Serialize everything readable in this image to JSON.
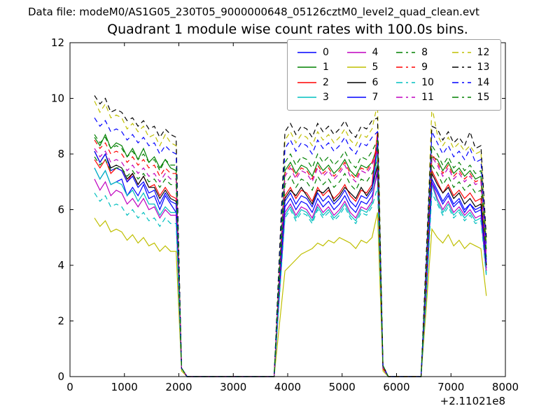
{
  "header": {
    "text": "Data file: modeM0/AS1G05_230T05_9000000648_05126cztM0_level2_quad_clean.evt"
  },
  "chart_data": {
    "type": "line",
    "title": "Quadrant 1 module wise count rates with 100.0s bins.",
    "xlabel": "",
    "ylabel": "",
    "xlim": [
      0,
      8000
    ],
    "ylim": [
      0,
      12
    ],
    "xticks": [
      0,
      1000,
      2000,
      3000,
      4000,
      5000,
      6000,
      7000,
      8000
    ],
    "yticks": [
      0,
      2,
      4,
      6,
      8,
      10,
      12
    ],
    "x_offset_label": "+2.11021e8",
    "bin_size_seconds": 100.0,
    "grid": false,
    "legend": {
      "position": "upper right",
      "columns": 4,
      "entries": [
        "0",
        "1",
        "2",
        "3",
        "4",
        "5",
        "6",
        "7",
        "8",
        "9",
        "10",
        "11",
        "12",
        "13",
        "14",
        "15"
      ]
    },
    "x_start": 450,
    "x_step": 100,
    "series": [
      {
        "name": "0",
        "color": "#0000FF",
        "style": "solid",
        "values": [
          7.5,
          7.1,
          7.4,
          6.9,
          7.0,
          7.1,
          6.5,
          6.8,
          6.5,
          6.9,
          6.4,
          6.5,
          6.0,
          6.5,
          6.2,
          5.9,
          0.3,
          0,
          0,
          0,
          0,
          0,
          0,
          0,
          0,
          0,
          0,
          0,
          0,
          0,
          0,
          0,
          0,
          0,
          3.1,
          6.1,
          6.4,
          6.0,
          6.3,
          6.2,
          5.9,
          6.4,
          6.1,
          6.3,
          6.0,
          6.2,
          6.5,
          6.1,
          5.9,
          6.3,
          6.2,
          6.5,
          7.3,
          0.3,
          0,
          0,
          0,
          0,
          0,
          0,
          0,
          3.2,
          7.0,
          6.6,
          6.2,
          6.5,
          6.1,
          6.3,
          5.9,
          6.2,
          6.0,
          6.1,
          3.9
        ]
      },
      {
        "name": "1",
        "color": "#008000",
        "style": "solid",
        "values": [
          8.6,
          8.3,
          8.7,
          8.2,
          8.4,
          8.3,
          7.9,
          8.2,
          7.8,
          8.2,
          7.7,
          7.9,
          7.5,
          7.8,
          7.5,
          7.4,
          0.3,
          0,
          0,
          0,
          0,
          0,
          0,
          0,
          0,
          0,
          0,
          0,
          0,
          0,
          0,
          0,
          0,
          0,
          3.8,
          7.4,
          7.7,
          7.3,
          7.6,
          7.5,
          7.2,
          7.7,
          7.4,
          7.6,
          7.3,
          7.5,
          7.8,
          7.4,
          7.2,
          7.6,
          7.5,
          7.7,
          8.3,
          0.3,
          0,
          0,
          0,
          0,
          0,
          0,
          0,
          3.9,
          7.9,
          7.8,
          7.4,
          7.7,
          7.3,
          7.5,
          7.2,
          7.4,
          7.1,
          7.2,
          4.2
        ]
      },
      {
        "name": "2",
        "color": "#FF0000",
        "style": "solid",
        "values": [
          7.8,
          7.5,
          7.8,
          7.3,
          7.5,
          7.4,
          7.0,
          7.3,
          6.9,
          7.2,
          6.8,
          6.9,
          6.5,
          6.8,
          6.5,
          6.4,
          0.3,
          0,
          0,
          0,
          0,
          0,
          0,
          0,
          0,
          0,
          0,
          0,
          0,
          0,
          0,
          0,
          0,
          0,
          3.3,
          6.5,
          6.8,
          6.4,
          6.7,
          6.6,
          6.3,
          6.8,
          6.5,
          6.7,
          6.4,
          6.6,
          6.9,
          6.5,
          6.3,
          6.7,
          6.6,
          6.9,
          8.8,
          0.3,
          0,
          0,
          0,
          0,
          0,
          0,
          0,
          3.4,
          7.4,
          7.0,
          6.6,
          6.9,
          6.5,
          6.7,
          6.4,
          6.6,
          6.3,
          6.4,
          4.0
        ]
      },
      {
        "name": "3",
        "color": "#00BFBF",
        "style": "solid",
        "values": [
          7.5,
          7.1,
          7.4,
          6.9,
          7.0,
          6.9,
          6.5,
          6.7,
          6.3,
          6.6,
          6.2,
          6.2,
          5.8,
          6.1,
          5.9,
          5.9,
          0.3,
          0,
          0,
          0,
          0,
          0,
          0,
          0,
          0,
          0,
          0,
          0,
          0,
          0,
          0,
          0,
          0,
          0,
          3.0,
          5.8,
          6.1,
          5.7,
          6.0,
          5.9,
          5.6,
          6.1,
          5.8,
          6.0,
          5.7,
          5.9,
          6.2,
          5.8,
          5.6,
          6.0,
          5.9,
          6.2,
          8.2,
          0.3,
          0,
          0,
          0,
          0,
          0,
          0,
          0,
          3.1,
          6.9,
          6.3,
          5.9,
          6.2,
          5.8,
          6.0,
          5.7,
          5.9,
          5.6,
          5.7,
          3.7
        ]
      },
      {
        "name": "4",
        "color": "#BF00BF",
        "style": "solid",
        "values": [
          7.1,
          6.7,
          7.0,
          6.5,
          6.7,
          6.6,
          6.2,
          6.4,
          6.1,
          6.4,
          6.0,
          6.1,
          5.7,
          6.0,
          5.8,
          5.8,
          0.3,
          0,
          0,
          0,
          0,
          0,
          0,
          0,
          0,
          0,
          0,
          0,
          0,
          0,
          0,
          0,
          0,
          0,
          3.0,
          5.9,
          6.2,
          5.8,
          6.1,
          6.0,
          5.7,
          6.2,
          5.9,
          6.1,
          5.8,
          6.0,
          6.3,
          5.9,
          5.7,
          6.1,
          6.0,
          6.3,
          7.5,
          0.3,
          0,
          0,
          0,
          0,
          0,
          0,
          0,
          3.1,
          7.0,
          6.4,
          6.0,
          6.3,
          5.9,
          6.1,
          5.8,
          6.0,
          5.7,
          5.8,
          3.8
        ]
      },
      {
        "name": "5",
        "color": "#BFBF00",
        "style": "solid",
        "values": [
          5.7,
          5.4,
          5.6,
          5.2,
          5.3,
          5.2,
          4.9,
          5.1,
          4.8,
          5.0,
          4.7,
          4.8,
          4.5,
          4.7,
          4.5,
          4.5,
          0.2,
          0,
          0,
          0,
          0,
          0,
          0,
          0,
          0,
          0,
          0,
          0,
          0,
          0,
          0,
          0,
          0,
          0,
          1.9,
          3.8,
          4.0,
          4.2,
          4.4,
          4.5,
          4.6,
          4.8,
          4.7,
          4.9,
          4.8,
          5.0,
          4.9,
          4.8,
          4.6,
          4.9,
          4.8,
          5.0,
          5.9,
          0.2,
          0,
          0,
          0,
          0,
          0,
          0,
          0,
          2.6,
          5.3,
          5.0,
          4.8,
          5.1,
          4.7,
          4.9,
          4.6,
          4.8,
          4.7,
          4.6,
          2.9
        ]
      },
      {
        "name": "6",
        "color": "#000000",
        "style": "solid",
        "values": [
          8.1,
          7.7,
          8.0,
          7.5,
          7.6,
          7.5,
          7.1,
          7.3,
          6.9,
          7.2,
          6.8,
          6.8,
          6.4,
          6.7,
          6.4,
          6.3,
          0.3,
          0,
          0,
          0,
          0,
          0,
          0,
          0,
          0,
          0,
          0,
          0,
          0,
          0,
          0,
          0,
          0,
          0,
          3.3,
          6.4,
          6.7,
          6.5,
          6.8,
          6.5,
          6.2,
          6.7,
          6.6,
          6.8,
          6.3,
          6.5,
          6.8,
          6.6,
          6.4,
          6.8,
          6.5,
          6.8,
          7.6,
          0.3,
          0,
          0,
          0,
          0,
          0,
          0,
          0,
          3.4,
          7.3,
          6.9,
          6.6,
          6.8,
          6.4,
          6.6,
          6.2,
          6.4,
          6.1,
          6.2,
          4.0
        ]
      },
      {
        "name": "7",
        "color": "#0000FF",
        "style": "solid",
        "values": [
          8.1,
          7.7,
          8.0,
          7.4,
          7.5,
          7.4,
          7.0,
          7.2,
          6.8,
          7.0,
          6.6,
          6.7,
          6.2,
          6.6,
          6.3,
          6.2,
          0.3,
          0,
          0,
          0,
          0,
          0,
          0,
          0,
          0,
          0,
          0,
          0,
          0,
          0,
          0,
          0,
          0,
          0,
          3.2,
          6.3,
          6.6,
          6.2,
          6.5,
          6.4,
          6.1,
          6.6,
          6.3,
          6.5,
          6.2,
          6.4,
          6.7,
          6.3,
          6.1,
          6.5,
          6.4,
          6.7,
          8.4,
          0.3,
          0,
          0,
          0,
          0,
          0,
          0,
          0,
          3.3,
          7.1,
          6.7,
          6.3,
          6.6,
          6.2,
          6.4,
          6.0,
          6.2,
          5.9,
          6.0,
          4.1
        ]
      },
      {
        "name": "8",
        "color": "#008000",
        "style": "dashed",
        "values": [
          7.9,
          7.6,
          7.8,
          7.4,
          7.5,
          7.5,
          7.2,
          7.4,
          7.1,
          7.3,
          7.0,
          7.1,
          6.8,
          7.1,
          6.9,
          6.9,
          0.3,
          0,
          0,
          0,
          0,
          0,
          0,
          0,
          0,
          0,
          0,
          0,
          0,
          0,
          0,
          0,
          0,
          0,
          3.5,
          6.9,
          7.2,
          6.8,
          7.1,
          7.0,
          6.7,
          7.2,
          6.9,
          7.1,
          6.8,
          7.0,
          7.3,
          6.9,
          6.7,
          7.1,
          7.0,
          7.3,
          7.8,
          0.3,
          0,
          0,
          0,
          0,
          0,
          0,
          0,
          3.6,
          7.6,
          7.3,
          6.9,
          7.2,
          6.8,
          7.0,
          6.7,
          6.9,
          6.6,
          6.7,
          4.3
        ]
      },
      {
        "name": "9",
        "color": "#FF0000",
        "style": "dashed",
        "values": [
          8.5,
          8.2,
          8.4,
          8.0,
          8.1,
          8.0,
          7.7,
          7.9,
          7.6,
          7.8,
          7.5,
          7.6,
          7.2,
          7.5,
          7.3,
          7.3,
          0.3,
          0,
          0,
          0,
          0,
          0,
          0,
          0,
          0,
          0,
          0,
          0,
          0,
          0,
          0,
          0,
          0,
          0,
          3.7,
          7.3,
          7.6,
          7.2,
          7.5,
          7.4,
          7.1,
          7.6,
          7.3,
          7.5,
          7.2,
          7.4,
          7.7,
          7.3,
          7.1,
          7.5,
          7.4,
          7.7,
          8.2,
          0.3,
          0,
          0,
          0,
          0,
          0,
          0,
          0,
          3.8,
          8.0,
          7.7,
          7.3,
          7.6,
          7.2,
          7.4,
          7.1,
          7.3,
          7.0,
          7.1,
          4.4
        ]
      },
      {
        "name": "10",
        "color": "#00BFBF",
        "style": "dashed",
        "values": [
          6.6,
          6.3,
          6.5,
          6.1,
          6.2,
          6.1,
          5.8,
          6.0,
          5.7,
          5.9,
          5.6,
          5.7,
          5.4,
          5.7,
          5.5,
          5.5,
          0.3,
          0,
          0,
          0,
          0,
          0,
          0,
          0,
          0,
          0,
          0,
          0,
          0,
          0,
          0,
          0,
          0,
          0,
          2.9,
          5.7,
          6.0,
          5.6,
          5.9,
          5.8,
          5.5,
          6.0,
          5.7,
          5.9,
          5.6,
          5.8,
          6.1,
          5.7,
          5.5,
          5.9,
          5.8,
          6.1,
          6.8,
          0.3,
          0,
          0,
          0,
          0,
          0,
          0,
          0,
          3.0,
          6.6,
          6.2,
          5.8,
          6.1,
          5.7,
          5.9,
          5.6,
          5.8,
          5.5,
          5.6,
          3.6
        ]
      },
      {
        "name": "11",
        "color": "#BF00BF",
        "style": "dashed",
        "values": [
          8.2,
          7.9,
          8.1,
          7.7,
          7.8,
          7.7,
          7.4,
          7.6,
          7.3,
          7.5,
          7.2,
          7.3,
          7.0,
          7.3,
          7.1,
          7.1,
          0.3,
          0,
          0,
          0,
          0,
          0,
          0,
          0,
          0,
          0,
          0,
          0,
          0,
          0,
          0,
          0,
          0,
          0,
          3.6,
          7.2,
          7.5,
          7.1,
          7.4,
          7.3,
          7.0,
          7.5,
          7.2,
          7.4,
          7.1,
          7.3,
          7.6,
          7.2,
          7.0,
          7.4,
          7.3,
          7.6,
          8.1,
          0.3,
          0,
          0,
          0,
          0,
          0,
          0,
          0,
          3.7,
          7.9,
          7.6,
          7.2,
          7.5,
          7.1,
          7.3,
          7.0,
          7.2,
          6.9,
          7.0,
          4.3
        ]
      },
      {
        "name": "12",
        "color": "#BFBF00",
        "style": "dashed",
        "values": [
          9.9,
          9.5,
          9.8,
          9.3,
          9.4,
          9.3,
          8.9,
          9.1,
          8.8,
          9.0,
          8.6,
          8.7,
          8.3,
          8.7,
          8.4,
          8.3,
          0.3,
          0,
          0,
          0,
          0,
          0,
          0,
          0,
          0,
          0,
          0,
          0,
          0,
          0,
          0,
          0,
          0,
          0,
          4.3,
          8.5,
          8.8,
          8.4,
          8.7,
          8.6,
          8.3,
          8.8,
          8.5,
          8.7,
          8.4,
          8.6,
          8.9,
          8.5,
          8.3,
          8.7,
          8.6,
          8.9,
          9.8,
          0.4,
          0,
          0,
          0,
          0,
          0,
          0,
          0,
          4.4,
          9.7,
          8.7,
          8.3,
          8.6,
          8.2,
          8.4,
          8.1,
          8.3,
          8.0,
          8.1,
          4.8
        ]
      },
      {
        "name": "13",
        "color": "#000000",
        "style": "dashed",
        "values": [
          10.1,
          9.8,
          10.0,
          9.5,
          9.6,
          9.5,
          9.2,
          9.3,
          9.0,
          9.2,
          8.9,
          9.0,
          8.6,
          8.9,
          8.7,
          8.6,
          0.3,
          0,
          0,
          0,
          0,
          0,
          0,
          0,
          0,
          0,
          0,
          0,
          0,
          0,
          0,
          0,
          0,
          0,
          4.5,
          8.8,
          9.1,
          8.7,
          9.0,
          8.9,
          8.6,
          9.1,
          8.8,
          9.0,
          8.7,
          8.9,
          9.2,
          8.8,
          8.6,
          9.0,
          8.9,
          9.2,
          9.3,
          0.4,
          0,
          0,
          0,
          0,
          0,
          0,
          0,
          4.6,
          9.0,
          8.9,
          8.5,
          8.8,
          8.4,
          8.6,
          8.3,
          8.8,
          8.2,
          8.3,
          5.0
        ]
      },
      {
        "name": "14",
        "color": "#0000FF",
        "style": "dashed",
        "values": [
          9.3,
          9.0,
          9.2,
          8.8,
          8.9,
          8.8,
          8.5,
          8.7,
          8.4,
          8.6,
          8.3,
          8.4,
          8.0,
          8.3,
          8.1,
          8.0,
          0.3,
          0,
          0,
          0,
          0,
          0,
          0,
          0,
          0,
          0,
          0,
          0,
          0,
          0,
          0,
          0,
          0,
          0,
          4.1,
          8.2,
          8.5,
          8.1,
          8.4,
          8.3,
          8.0,
          8.5,
          8.2,
          8.4,
          8.1,
          8.3,
          8.6,
          8.2,
          8.0,
          8.4,
          8.3,
          8.6,
          8.8,
          0.4,
          0,
          0,
          0,
          0,
          0,
          0,
          0,
          4.2,
          8.8,
          8.4,
          8.0,
          8.3,
          7.9,
          8.1,
          7.8,
          8.2,
          7.7,
          7.8,
          4.6
        ]
      },
      {
        "name": "15",
        "color": "#008000",
        "style": "dashed",
        "values": [
          8.7,
          8.4,
          8.6,
          8.2,
          8.3,
          8.2,
          7.9,
          8.1,
          7.8,
          8.0,
          7.7,
          7.8,
          7.4,
          7.8,
          7.6,
          7.6,
          0.3,
          0,
          0,
          0,
          0,
          0,
          0,
          0,
          0,
          0,
          0,
          0,
          0,
          0,
          0,
          0,
          0,
          0,
          3.9,
          7.7,
          8.0,
          7.6,
          7.9,
          7.8,
          7.5,
          8.0,
          7.7,
          7.9,
          7.6,
          7.8,
          8.1,
          7.7,
          7.5,
          7.9,
          7.8,
          8.1,
          8.5,
          0.4,
          0,
          0,
          0,
          0,
          0,
          0,
          0,
          4.0,
          8.3,
          8.0,
          7.6,
          7.9,
          7.5,
          7.7,
          7.4,
          7.6,
          7.3,
          7.4,
          4.5
        ]
      }
    ]
  }
}
